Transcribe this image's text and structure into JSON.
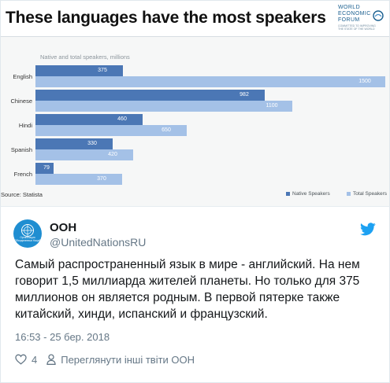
{
  "infographic": {
    "headline": "These languages have the most speakers",
    "logo_lines": [
      "WORLD",
      "ECONOMIC",
      "FORUM"
    ],
    "logo_tagline": "COMMITTED TO IMPROVING THE STATE OF THE WORLD",
    "source": "Source: Statista",
    "colors": {
      "native": "#4b77b5",
      "total": "#a4c1e7"
    }
  },
  "chart_data": {
    "type": "bar",
    "orientation": "horizontal",
    "title": "",
    "subtitle": "Native and total speakers, millions",
    "categories": [
      "English",
      "Chinese",
      "Hindi",
      "Spanish",
      "French"
    ],
    "series": [
      {
        "name": "Native Speakers",
        "values": [
          375,
          982,
          460,
          330,
          79
        ]
      },
      {
        "name": "Total Speakers",
        "values": [
          1500,
          1100,
          650,
          420,
          370
        ]
      }
    ],
    "xlim": [
      0,
      1500
    ],
    "grid": false,
    "legend_position": "bottom-right",
    "data_labels": true
  },
  "tweet": {
    "display_name": "ООН",
    "handle": "@UnitedNationsRU",
    "avatar_caption": "Организация Объединенных Наций",
    "text_lines": [
      "Самый распространенный язык в мире - английский. На нем",
      "говорит 1,5 миллиарда жителей планеты. Но только для 375",
      "миллионов он является родным. В первой пятерке также",
      "китайский, хинди, испанский и французский."
    ],
    "timestamp": "16:53 - 25 бер. 2018",
    "likes": "4",
    "view_others": "Переглянути інші твіти ООН",
    "icons": {
      "like": "heart-icon",
      "profile": "person-icon",
      "brand": "twitter-bird-icon"
    },
    "brand_color": "#1da1f2"
  }
}
